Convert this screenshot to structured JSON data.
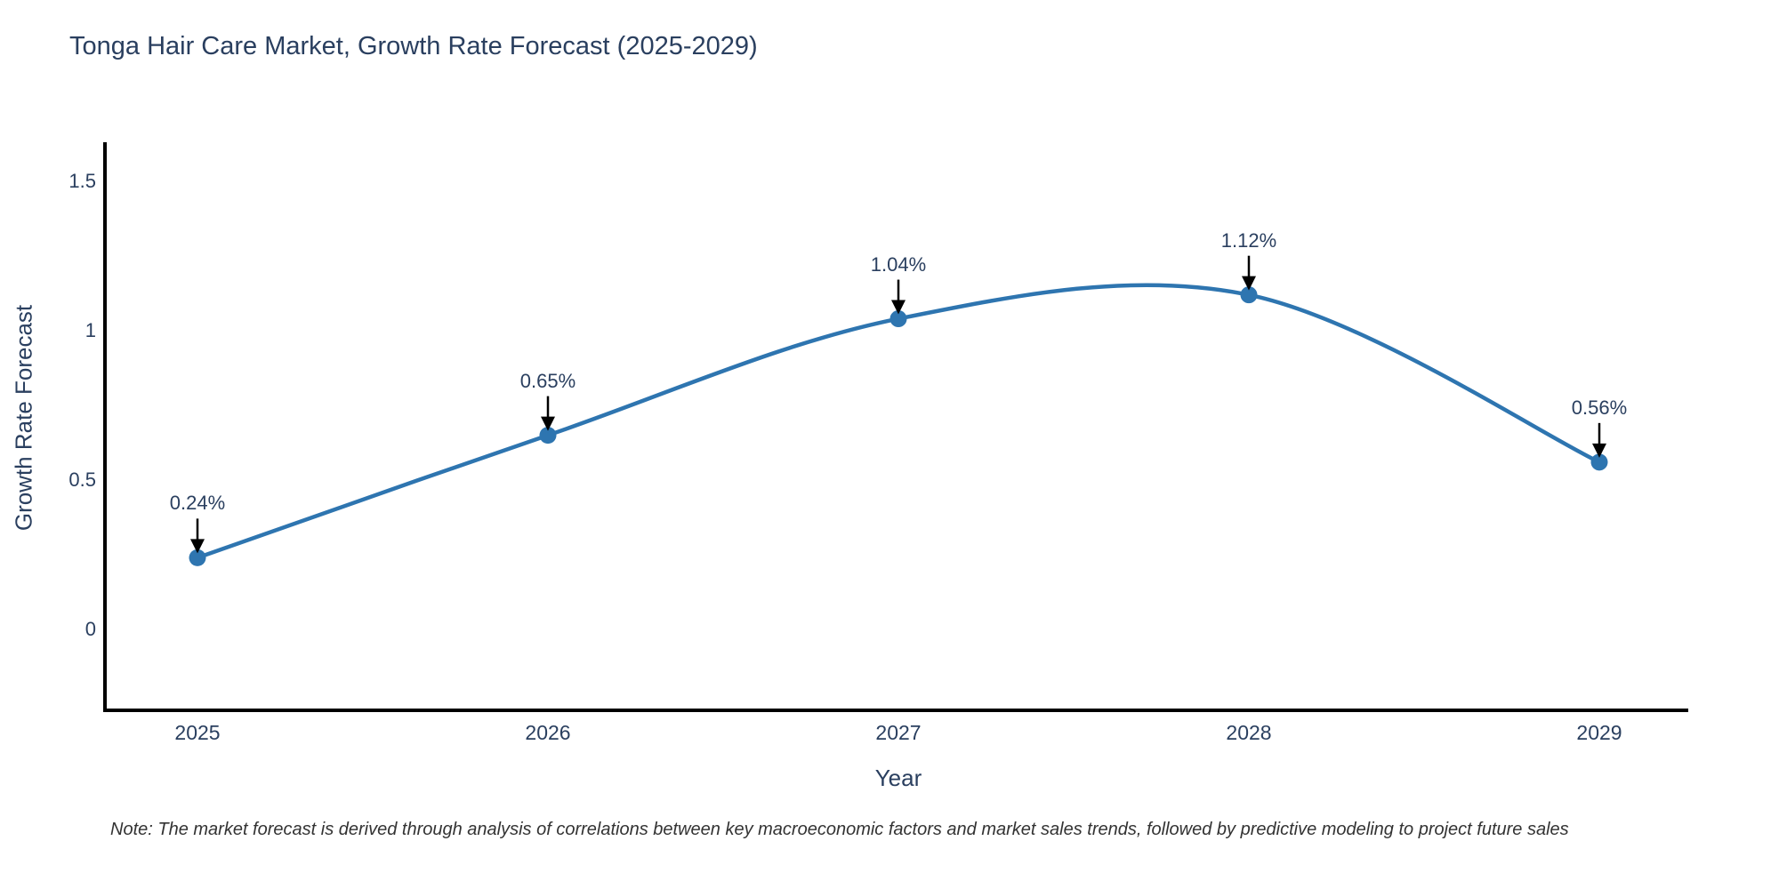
{
  "title": "Tonga Hair Care Market, Growth Rate Forecast (2025-2029)",
  "note": "Note: The market forecast is derived through analysis of correlations between key macroeconomic factors and market sales trends, followed by predictive modeling to project future sales",
  "chart_data": {
    "type": "line",
    "title": "Tonga Hair Care Market, Growth Rate Forecast (2025-2029)",
    "xlabel": "Year",
    "ylabel": "Growth Rate Forecast",
    "categories": [
      "2025",
      "2026",
      "2027",
      "2028",
      "2029"
    ],
    "values": [
      0.24,
      0.65,
      1.04,
      1.12,
      0.56
    ],
    "point_labels": [
      "0.24%",
      "0.65%",
      "1.04%",
      "1.12%",
      "0.56%"
    ],
    "y_ticks": [
      0,
      0.5,
      1,
      1.5
    ],
    "y_tick_labels": [
      "0",
      "0.5",
      "1",
      "1.5"
    ],
    "ylim": [
      -0.28,
      1.63
    ],
    "line_shape": "spline",
    "grid": false,
    "legend_position": "none",
    "annotation_style": "black-arrow-pointing-down-to-point",
    "colors": {
      "line": "#2e75b0",
      "marker": "#2e75b0",
      "text": "#2a3f5f",
      "axis": "#000000",
      "note_text": "#333333",
      "background": "#ffffff"
    }
  }
}
